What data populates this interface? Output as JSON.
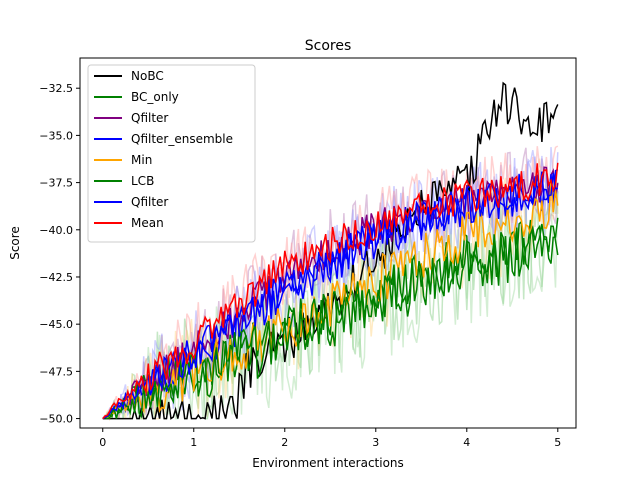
{
  "chart_data": {
    "type": "line",
    "title": "Scores",
    "xlabel": "Environment interactions",
    "ylabel": "Score",
    "xlim": [
      -0.25,
      5.2
    ],
    "ylim": [
      -50.5,
      -30.9
    ],
    "xticks": [
      0,
      1,
      2,
      3,
      4,
      5
    ],
    "xtick_labels": [
      "0",
      "1",
      "2",
      "3",
      "4",
      "5"
    ],
    "yticks": [
      -50.0,
      -47.5,
      -45.0,
      -42.5,
      -40.0,
      -37.5,
      -35.0,
      -32.5
    ],
    "ytick_labels": [
      "−50.0",
      "−47.5",
      "−45.0",
      "−42.5",
      "−40.0",
      "−37.5",
      "−35.0",
      "−32.5"
    ],
    "legend_position": "top-left",
    "grid": false,
    "note_on_lines": "each series is a noisy curve over x in [0,5]; values below are the key points of each mean curve, rendered with a deterministic jitter; faint shaded copies show noisier raw runs",
    "series": [
      {
        "name": "NoBC",
        "color": "#000000",
        "x": [
          0,
          0.5,
          1.0,
          1.2,
          1.45,
          1.5,
          1.6,
          2.0,
          2.5,
          3.0,
          3.5,
          4.0,
          4.2,
          4.4,
          4.6,
          4.8,
          5.0
        ],
        "y": [
          -50,
          -50,
          -50,
          -49.8,
          -49.9,
          -48.5,
          -47.5,
          -46.0,
          -44.0,
          -41.5,
          -39.0,
          -37.5,
          -35.0,
          -33.0,
          -34.0,
          -34.5,
          -33.5
        ],
        "noise": 1.2,
        "shade": false
      },
      {
        "name": "BC_only",
        "color": "#008000",
        "x": [
          0,
          0.2,
          0.5,
          1.0,
          1.5,
          2.0,
          2.5,
          3.0,
          3.5,
          4.0,
          4.5,
          5.0
        ],
        "y": [
          -50,
          -49.5,
          -48.5,
          -47.5,
          -46.5,
          -45.3,
          -44.5,
          -43.5,
          -42.5,
          -41.5,
          -41.0,
          -40.0
        ],
        "noise": 1.4,
        "shade": true,
        "shade_color": "#7fc97f"
      },
      {
        "name": "Qfilter",
        "color": "#800080",
        "x": [
          0,
          0.2,
          0.5,
          1.0,
          1.5,
          2.0,
          2.5,
          3.0,
          3.5,
          4.0,
          4.5,
          5.0
        ],
        "y": [
          -50,
          -49.2,
          -48.0,
          -46.5,
          -44.5,
          -42.5,
          -41.0,
          -40.0,
          -39.0,
          -38.5,
          -38.0,
          -37.5
        ],
        "noise": 1.0,
        "shade": true,
        "shade_color": "#b57ab5"
      },
      {
        "name": "Qfilter_ensemble",
        "color": "#0000ff",
        "x": [
          0,
          0.2,
          0.5,
          1.0,
          1.5,
          2.0,
          2.5,
          3.0,
          3.5,
          4.0,
          4.5,
          5.0
        ],
        "y": [
          -50,
          -49.3,
          -48.3,
          -46.8,
          -45.0,
          -43.3,
          -41.8,
          -40.5,
          -39.5,
          -38.8,
          -38.2,
          -37.8
        ],
        "noise": 1.1,
        "shade": true,
        "shade_color": "#8a8aff"
      },
      {
        "name": "Min",
        "color": "#ffa500",
        "x": [
          0,
          0.2,
          0.5,
          1.0,
          1.5,
          2.0,
          2.5,
          3.0,
          3.5,
          4.0,
          4.5,
          5.0
        ],
        "y": [
          -50,
          -49.5,
          -48.7,
          -47.5,
          -46.4,
          -45.2,
          -44.0,
          -42.7,
          -41.5,
          -40.3,
          -39.5,
          -38.5
        ],
        "noise": 1.3,
        "shade": true,
        "shade_color": "#ffd27f"
      },
      {
        "name": "LCB",
        "color": "#008000",
        "x": [
          0,
          0.2,
          0.5,
          1.0,
          1.5,
          2.0,
          2.5,
          3.0,
          3.5,
          4.0,
          4.5,
          5.0
        ],
        "y": [
          -50,
          -49.6,
          -48.8,
          -47.8,
          -46.8,
          -45.8,
          -44.8,
          -43.8,
          -42.8,
          -42.0,
          -41.3,
          -40.5
        ],
        "noise": 1.5,
        "shade": true,
        "shade_color": "#9fd99f"
      },
      {
        "name": "Qfilter",
        "color": "#0000ff",
        "x": [
          0,
          0.2,
          0.5,
          1.0,
          1.5,
          2.0,
          2.5,
          3.0,
          3.5,
          4.0,
          4.5,
          5.0
        ],
        "y": [
          -50,
          -49.2,
          -48.2,
          -46.5,
          -44.8,
          -43.0,
          -41.5,
          -40.3,
          -39.5,
          -38.8,
          -38.3,
          -37.5
        ],
        "noise": 1.0,
        "shade": true,
        "shade_color": "#9a9aff"
      },
      {
        "name": "Mean",
        "color": "#ff0000",
        "x": [
          0,
          0.2,
          0.5,
          1.0,
          1.5,
          2.0,
          2.5,
          3.0,
          3.5,
          4.0,
          4.5,
          5.0
        ],
        "y": [
          -50,
          -49.0,
          -47.8,
          -46.0,
          -44.0,
          -42.0,
          -40.8,
          -39.8,
          -38.9,
          -38.3,
          -37.8,
          -37.0
        ],
        "noise": 0.9,
        "shade": true,
        "shade_color": "#ff9a9a"
      }
    ]
  }
}
